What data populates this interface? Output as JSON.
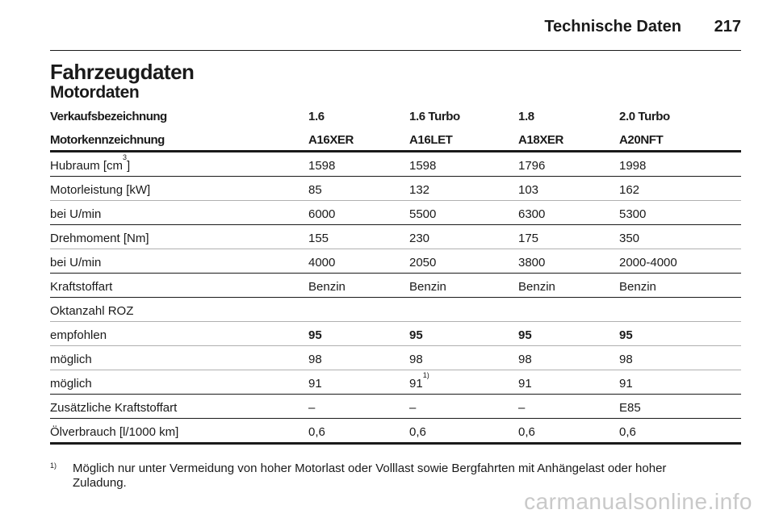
{
  "header": {
    "title": "Technische Daten",
    "page": "217"
  },
  "title": "Fahrzeugdaten",
  "subtitle": "Motordaten",
  "table": {
    "head": [
      [
        "Verkaufsbezeichnung",
        "1.6",
        "1.6 Turbo",
        "1.8",
        "2.0 Turbo"
      ],
      [
        "Motorkennzeichnung",
        "A16XER",
        "A16LET",
        "A18XER",
        "A20NFT"
      ]
    ],
    "hubraum": {
      "label": "Hubraum [cm",
      "sup": "3",
      "label_end": "]",
      "values": [
        "1598",
        "1598",
        "1796",
        "1998"
      ]
    },
    "leistung": [
      "Motorleistung [kW]",
      "85",
      "132",
      "103",
      "162"
    ],
    "leistung_rpm": [
      "bei U/min",
      "6000",
      "5500",
      "6300",
      "5300"
    ],
    "drehmoment": [
      "Drehmoment [Nm]",
      "155",
      "230",
      "175",
      "350"
    ],
    "drehmoment_rpm": [
      "bei U/min",
      "4000",
      "2050",
      "3800",
      "2000-4000"
    ],
    "kraftstoff": [
      "Kraftstoffart",
      "Benzin",
      "Benzin",
      "Benzin",
      "Benzin"
    ],
    "oktan_label": "Oktanzahl ROZ",
    "empfohlen": [
      "empfohlen",
      "95",
      "95",
      "95",
      "95"
    ],
    "moeglich1": [
      "möglich",
      "98",
      "98",
      "98",
      "98"
    ],
    "moeglich2": {
      "label": "möglich",
      "v1": "91",
      "v2": "91",
      "v2_sup": "1)",
      "v3": "91",
      "v4": "91"
    },
    "zusatz": [
      "Zusätzliche Kraftstoffart",
      "–",
      "–",
      "–",
      "E85"
    ],
    "oel": [
      "Ölverbrauch [l/1000 km]",
      "0,6",
      "0,6",
      "0,6",
      "0,6"
    ]
  },
  "footnote": {
    "mark": "1)",
    "line1": "Möglich nur unter Vermeidung von hoher Motorlast oder Volllast sowie Bergfahrten mit Anhängelast oder hoher",
    "line2": "Zuladung."
  },
  "watermark": "carmanualsonline.info"
}
